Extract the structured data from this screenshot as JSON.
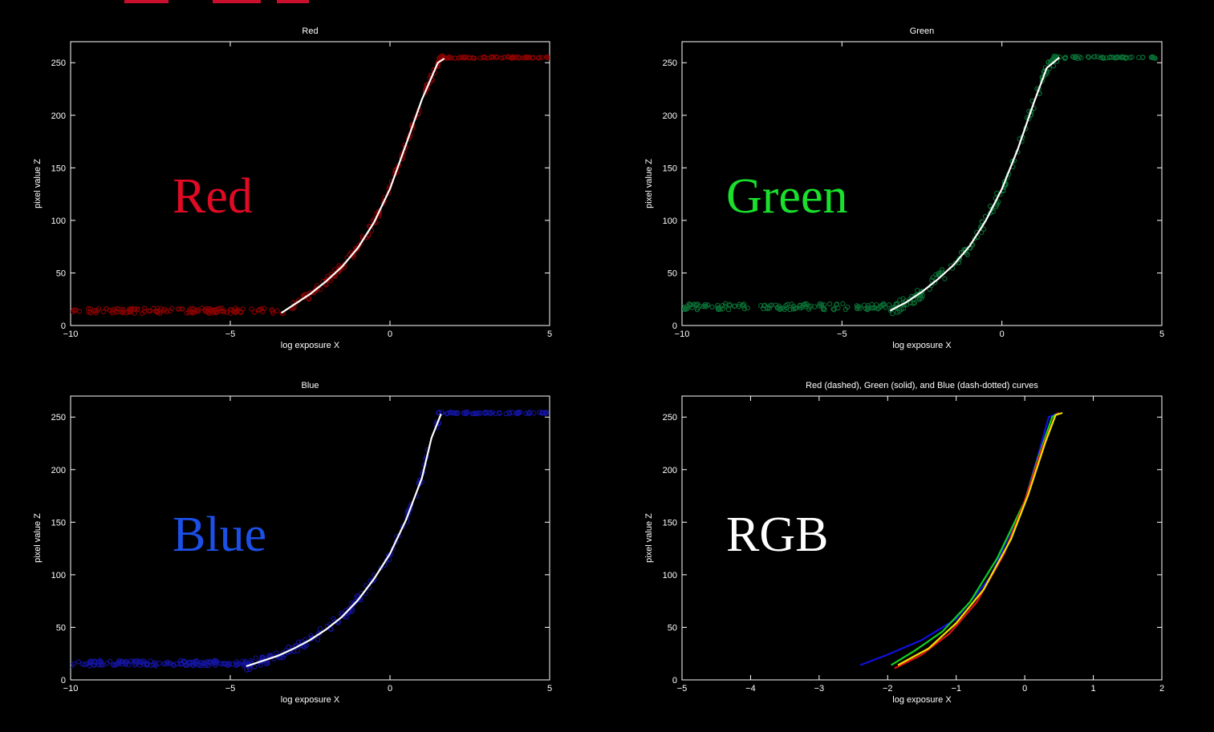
{
  "chart_data": [
    {
      "type": "scatter",
      "title": "Red",
      "overlay_label": "Red",
      "overlay_color": "#e00a24",
      "point_color": "#8b0000",
      "fit_color": "#ffffff",
      "xlabel": "log exposure X",
      "ylabel": "pixel value Z",
      "xlim": [
        -10,
        5
      ],
      "ylim": [
        0,
        270
      ],
      "xticks": [
        -10,
        -5,
        0,
        5
      ],
      "yticks": [
        0,
        50,
        100,
        150,
        200,
        250
      ],
      "xtick_labels": [
        "−10",
        "−5",
        "0",
        "5"
      ],
      "ytick_labels": [
        "0",
        "50",
        "100",
        "150",
        "200",
        "250"
      ],
      "scatter_segments": [
        {
          "x_range": [
            -10,
            -3.5
          ],
          "y": 14,
          "spread": 2.5,
          "count": 130
        },
        {
          "x_range": [
            1.5,
            5
          ],
          "y": 255,
          "spread": 0.8,
          "count": 70
        }
      ],
      "scatter_fit_jitter": 4,
      "scatter_fit_count": 140,
      "fit_curve": {
        "x": [
          -3.4,
          -3,
          -2.5,
          -2,
          -1.5,
          -1,
          -0.5,
          0,
          0.5,
          1,
          1.5,
          1.7
        ],
        "y": [
          12,
          20,
          30,
          42,
          56,
          74,
          98,
          130,
          172,
          215,
          250,
          254
        ]
      },
      "grid": false
    },
    {
      "type": "scatter",
      "title": "Green",
      "overlay_label": "Green",
      "overlay_color": "#18e02c",
      "point_color": "#0a6e34",
      "fit_color": "#ffffff",
      "xlabel": "log exposure X",
      "ylabel": "pixel value Z",
      "xlim": [
        -10,
        5
      ],
      "ylim": [
        0,
        270
      ],
      "xticks": [
        -10,
        -5,
        0,
        5
      ],
      "yticks": [
        0,
        50,
        100,
        150,
        200,
        250
      ],
      "xtick_labels": [
        "−10",
        "−5",
        "0",
        "5"
      ],
      "ytick_labels": [
        "0",
        "50",
        "100",
        "150",
        "200",
        "250"
      ],
      "scatter_segments": [
        {
          "x_range": [
            -10,
            -3.5
          ],
          "y": 18,
          "spread": 3,
          "count": 130
        },
        {
          "x_range": [
            1.6,
            5
          ],
          "y": 255,
          "spread": 1,
          "count": 55
        }
      ],
      "scatter_fit_jitter": 6,
      "scatter_fit_count": 140,
      "fit_curve": {
        "x": [
          -3.5,
          -3,
          -2.5,
          -2,
          -1.5,
          -1,
          -0.5,
          0,
          0.5,
          1,
          1.4,
          1.8
        ],
        "y": [
          14,
          22,
          32,
          44,
          58,
          76,
          100,
          130,
          168,
          212,
          245,
          255
        ]
      },
      "grid": false
    },
    {
      "type": "scatter",
      "title": "Blue",
      "overlay_label": "Blue",
      "overlay_color": "#1c4fe6",
      "point_color": "#1414a0",
      "fit_color": "#ffffff",
      "xlabel": "log exposure X",
      "ylabel": "pixel value Z",
      "xlim": [
        -10,
        5
      ],
      "ylim": [
        0,
        270
      ],
      "xticks": [
        -10,
        -5,
        0,
        5
      ],
      "yticks": [
        0,
        50,
        100,
        150,
        200,
        250
      ],
      "xtick_labels": [
        "−10",
        "−5",
        "0",
        "5"
      ],
      "ytick_labels": [
        "0",
        "50",
        "100",
        "150",
        "200",
        "250"
      ],
      "scatter_segments": [
        {
          "x_range": [
            -10,
            -4.5
          ],
          "y": 16,
          "spread": 2.5,
          "count": 140
        },
        {
          "x_range": [
            1.4,
            5
          ],
          "y": 254,
          "spread": 0.8,
          "count": 65
        }
      ],
      "scatter_fit_jitter": 5,
      "scatter_fit_count": 140,
      "fit_curve": {
        "x": [
          -4.5,
          -4,
          -3.5,
          -3,
          -2.5,
          -2,
          -1.5,
          -1,
          -0.5,
          0,
          0.5,
          1,
          1.3,
          1.6
        ],
        "y": [
          13,
          18,
          23,
          30,
          38,
          48,
          60,
          76,
          96,
          120,
          152,
          192,
          230,
          253
        ]
      },
      "grid": false
    },
    {
      "type": "line",
      "title": "Red (dashed), Green (solid), and Blue (dash-dotted) curves",
      "overlay_label": "RGB",
      "overlay_color": "#ffffff",
      "xlabel": "log exposure X",
      "ylabel": "pixel value Z",
      "xlim": [
        -5,
        2
      ],
      "ylim": [
        0,
        270
      ],
      "xticks": [
        -5,
        -4,
        -3,
        -2,
        -1,
        0,
        1,
        2
      ],
      "yticks": [
        0,
        50,
        100,
        150,
        200,
        250
      ],
      "xtick_labels": [
        "−5",
        "−4",
        "−3",
        "−2",
        "−1",
        "0",
        "1",
        "2"
      ],
      "ytick_labels": [
        "0",
        "50",
        "100",
        "150",
        "200",
        "250"
      ],
      "series": [
        {
          "color": "#1010e0",
          "x": [
            -2.4,
            -2,
            -1.5,
            -1,
            -0.5,
            0,
            0.2,
            0.35,
            0.5
          ],
          "y": [
            14,
            24,
            38,
            58,
            98,
            170,
            215,
            250,
            254
          ]
        },
        {
          "color": "#10d020",
          "x": [
            -1.95,
            -1.6,
            -1.2,
            -0.8,
            -0.4,
            0,
            0.2,
            0.4,
            0.5
          ],
          "y": [
            14,
            28,
            46,
            74,
            116,
            170,
            212,
            250,
            254
          ]
        },
        {
          "color": "#e01010",
          "x": [
            -1.9,
            -1.5,
            -1.1,
            -0.7,
            -0.3,
            0,
            0.25,
            0.45,
            0.5
          ],
          "y": [
            11,
            24,
            44,
            74,
            120,
            170,
            220,
            252,
            254
          ]
        },
        {
          "color": "#f0e000",
          "x": [
            -1.85,
            -1.4,
            -1,
            -0.6,
            -0.2,
            0.05,
            0.3,
            0.45,
            0.55
          ],
          "y": [
            14,
            30,
            54,
            86,
            134,
            176,
            226,
            252,
            254
          ]
        }
      ],
      "grid": false
    }
  ]
}
